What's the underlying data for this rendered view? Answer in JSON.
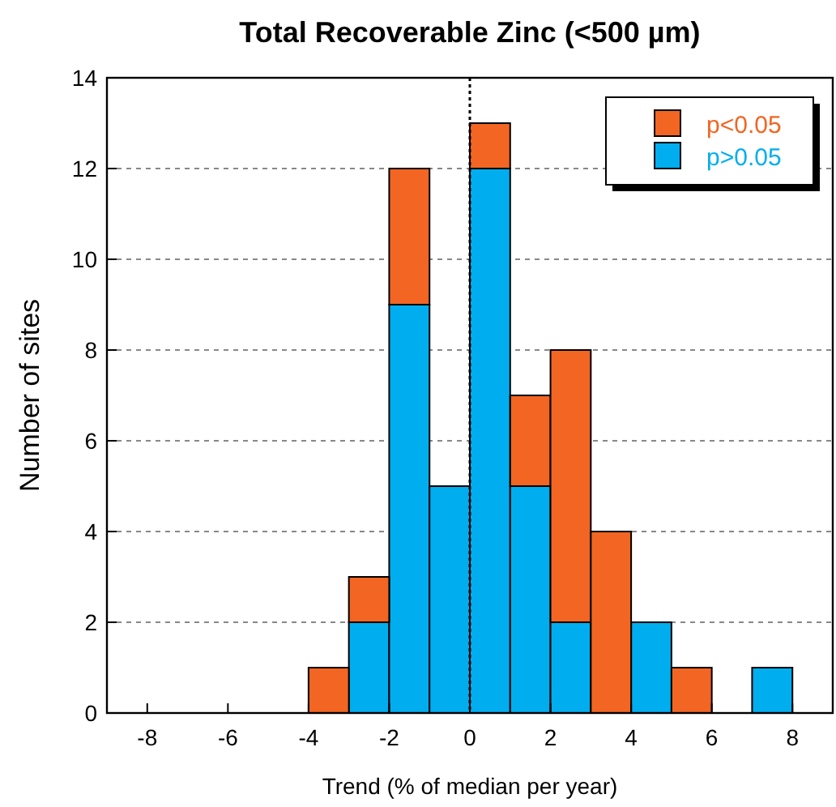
{
  "chart_data": {
    "type": "bar",
    "title": "Total Recoverable Zinc (<500 µm)",
    "xlabel": "Trend (% of median per year)",
    "ylabel": "Number of sites",
    "x": [
      -3.5,
      -2.5,
      -1.5,
      -0.5,
      0.5,
      1.5,
      2.5,
      3.5,
      4.5,
      5.5,
      6.5,
      7.5
    ],
    "stacked": true,
    "series": [
      {
        "name": "p>0.05",
        "color": "#00aeef",
        "values": [
          0,
          2,
          9,
          5,
          12,
          5,
          2,
          0,
          2,
          0,
          0,
          1
        ]
      },
      {
        "name": "p<0.05",
        "color": "#f26522",
        "values": [
          1,
          1,
          3,
          0,
          1,
          2,
          6,
          4,
          0,
          1,
          0,
          0
        ]
      }
    ],
    "xlim": [
      -9,
      9
    ],
    "xticks": [
      -8,
      -6,
      -4,
      -2,
      0,
      2,
      4,
      6,
      8
    ],
    "ylim": [
      0,
      14
    ],
    "yticks": [
      0,
      2,
      4,
      6,
      8,
      10,
      12,
      14
    ],
    "grid": "y",
    "legend": "top right",
    "ref_lines": [
      {
        "axis": "x",
        "value": 0,
        "line_style": "dotted",
        "color": "#000000"
      }
    ]
  }
}
